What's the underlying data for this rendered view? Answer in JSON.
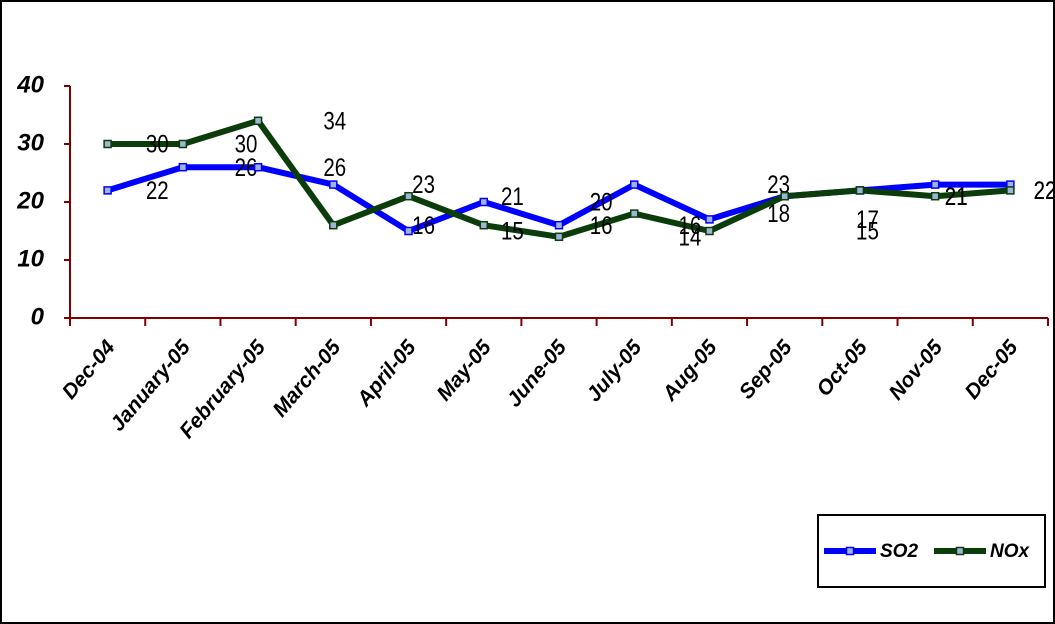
{
  "chart_data": {
    "type": "line",
    "categories": [
      "Dec-04",
      "January-05",
      "February-05",
      "March-05",
      "April-05",
      "May-05",
      "June-05",
      "July-05",
      "Aug-05",
      "Sep-05",
      "Oct-05",
      "Nov-05",
      "Dec-05"
    ],
    "series": [
      {
        "name": "SO2",
        "color": "#0000ff",
        "values": [
          22,
          26,
          26,
          23,
          15,
          20,
          16,
          23,
          17,
          21,
          22,
          23,
          23
        ]
      },
      {
        "name": "NOx",
        "color": "#0b3d0b",
        "values": [
          30,
          30,
          34,
          16,
          21,
          16,
          14,
          18,
          15,
          21,
          22,
          21,
          22
        ]
      }
    ],
    "ylim": [
      0,
      40
    ],
    "yticks": [
      0,
      10,
      20,
      30,
      40
    ],
    "axis_color": "#800000",
    "legend": "bottom-right"
  }
}
